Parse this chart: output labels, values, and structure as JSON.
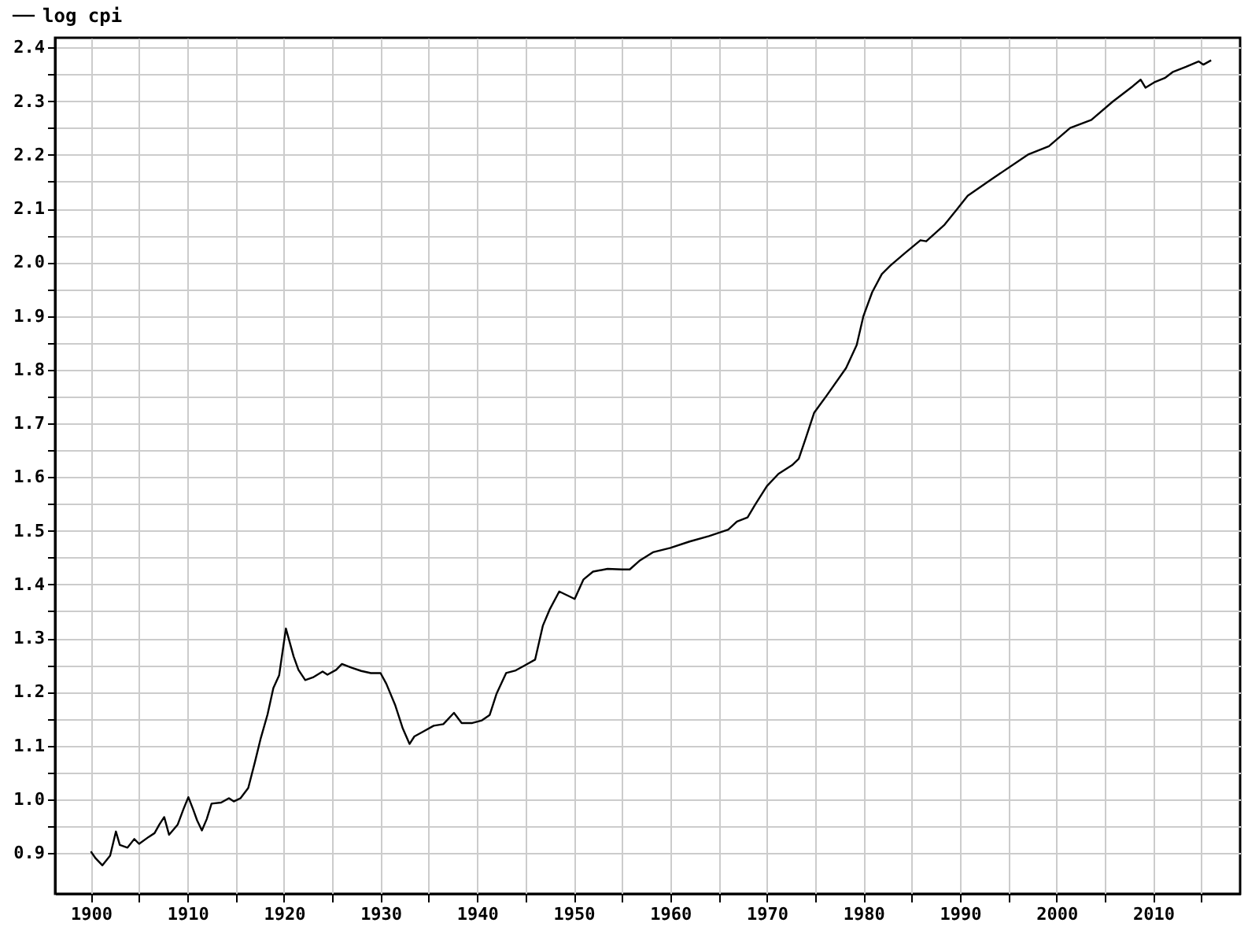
{
  "chart_data": {
    "type": "line",
    "x": [
      1900.0,
      1900.5,
      1901.2,
      1902.0,
      1902.6,
      1903.0,
      1903.8,
      1904.5,
      1905.0,
      1906.0,
      1906.6,
      1907.1,
      1907.6,
      1908.1,
      1909.0,
      1909.6,
      1910.1,
      1910.6,
      1911.0,
      1911.5,
      1912.0,
      1912.5,
      1913.5,
      1914.3,
      1914.8,
      1915.5,
      1916.3,
      1917.0,
      1917.6,
      1918.3,
      1918.9,
      1919.5,
      1920.2,
      1921.0,
      1921.5,
      1922.2,
      1923.0,
      1924.0,
      1924.5,
      1925.4,
      1926.0,
      1927.0,
      1928.0,
      1929.0,
      1930.0,
      1930.6,
      1931.5,
      1932.3,
      1933.0,
      1933.5,
      1934.5,
      1935.5,
      1936.5,
      1937.6,
      1938.4,
      1939.5,
      1940.5,
      1941.3,
      1942.0,
      1943.0,
      1944.0,
      1945.0,
      1946.0,
      1946.8,
      1947.5,
      1948.5,
      1949.3,
      1950.1,
      1951.0,
      1952.0,
      1953.5,
      1955.0,
      1955.8,
      1956.8,
      1958.2,
      1960.0,
      1962.0,
      1964.0,
      1966.0,
      1966.9,
      1968.0,
      1968.8,
      1970.0,
      1971.2,
      1972.6,
      1973.3,
      1974.0,
      1974.9,
      1976.2,
      1978.2,
      1979.3,
      1980.0,
      1980.9,
      1981.9,
      1982.8,
      1984.3,
      1985.9,
      1986.5,
      1988.4,
      1989.7,
      1990.8,
      1993.3,
      1997.1,
      1999.2,
      2001.4,
      2003.6,
      2005.8,
      2007.9,
      2008.7,
      2009.2,
      2010.1,
      2011.2,
      2012.0,
      2013.4,
      2014.7,
      2015.2,
      2016.0
    ],
    "series": [
      {
        "name": "log cpi",
        "color": "#000000",
        "values": [
          0.903,
          0.89,
          0.877,
          0.895,
          0.94,
          0.915,
          0.91,
          0.926,
          0.917,
          0.93,
          0.937,
          0.953,
          0.967,
          0.934,
          0.953,
          0.982,
          1.004,
          0.981,
          0.961,
          0.942,
          0.963,
          0.992,
          0.994,
          1.002,
          0.996,
          1.002,
          1.021,
          1.07,
          1.114,
          1.158,
          1.207,
          1.231,
          1.318,
          1.266,
          1.241,
          1.222,
          1.227,
          1.238,
          1.232,
          1.241,
          1.252,
          1.245,
          1.239,
          1.235,
          1.235,
          1.215,
          1.176,
          1.132,
          1.103,
          1.117,
          1.127,
          1.137,
          1.14,
          1.161,
          1.142,
          1.142,
          1.147,
          1.157,
          1.196,
          1.235,
          1.24,
          1.25,
          1.26,
          1.323,
          1.353,
          1.387,
          1.38,
          1.373,
          1.409,
          1.424,
          1.429,
          1.428,
          1.428,
          1.444,
          1.46,
          1.468,
          1.48,
          1.49,
          1.502,
          1.517,
          1.525,
          1.549,
          1.583,
          1.606,
          1.622,
          1.634,
          1.671,
          1.72,
          1.752,
          1.803,
          1.846,
          1.9,
          1.944,
          1.978,
          1.994,
          2.017,
          2.041,
          2.039,
          2.07,
          2.099,
          2.124,
          2.155,
          2.201,
          2.216,
          2.25,
          2.265,
          2.299,
          2.328,
          2.34,
          2.325,
          2.335,
          2.343,
          2.354,
          2.364,
          2.374,
          2.368,
          2.376
        ]
      }
    ],
    "xlim": [
      1896.3,
      2019.0
    ],
    "ylim": [
      0.824,
      2.418
    ],
    "xticks": [
      1900,
      {
        "value": 1905,
        "label": null
      },
      1910,
      {
        "value": 1915,
        "label": null
      },
      1920,
      {
        "value": 1925,
        "label": null
      },
      1930,
      {
        "value": 1935,
        "label": null
      },
      1940,
      {
        "value": 1945,
        "label": null
      },
      1950,
      {
        "value": 1955,
        "label": null
      },
      1960,
      {
        "value": 1965,
        "label": null
      },
      1970,
      {
        "value": 1975,
        "label": null
      },
      1980,
      {
        "value": 1985,
        "label": null
      },
      1990,
      {
        "value": 1995,
        "label": null
      },
      2000,
      {
        "value": 2005,
        "label": null
      },
      2010,
      {
        "value": 2015,
        "label": null
      }
    ],
    "yticks": [
      0.9,
      {
        "value": 0.95,
        "label": null
      },
      {
        "value": 1,
        "label": "1.0"
      },
      {
        "value": 1.05,
        "label": null
      },
      1.1,
      {
        "value": 1.15,
        "label": null
      },
      1.2,
      {
        "value": 1.25,
        "label": null
      },
      1.3,
      {
        "value": 1.35,
        "label": null
      },
      1.4,
      {
        "value": 1.45,
        "label": null
      },
      1.5,
      {
        "value": 1.55,
        "label": null
      },
      1.6,
      {
        "value": 1.65,
        "label": null
      },
      1.7,
      {
        "value": 1.75,
        "label": null
      },
      1.8,
      {
        "value": 1.85,
        "label": null
      },
      1.9,
      {
        "value": 1.95,
        "label": null
      },
      {
        "value": 2,
        "label": "2.0"
      },
      {
        "value": 2.05,
        "label": null
      },
      2.1,
      {
        "value": 2.15,
        "label": null
      },
      2.2,
      {
        "value": 2.25,
        "label": null
      },
      2.3,
      {
        "value": 2.35,
        "label": null
      },
      2.4
    ],
    "grid": true,
    "legend": "top left",
    "marker": "none",
    "line_style": "solid"
  }
}
